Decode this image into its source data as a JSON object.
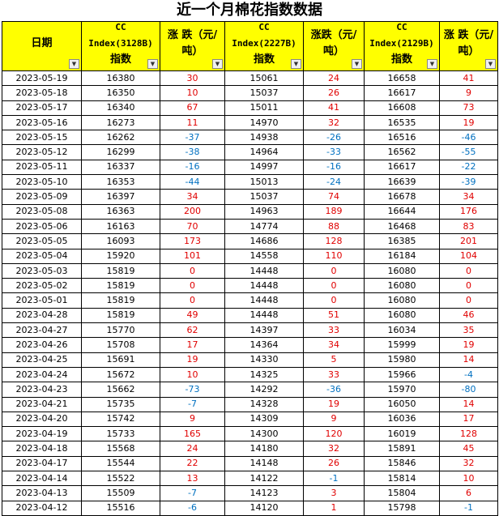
{
  "title": "近一个月棉花指数数据",
  "headers": [
    [
      "日期"
    ],
    [
      "CC",
      "Index(3128B)",
      "指数"
    ],
    [
      "涨 跌（元/",
      "吨）"
    ],
    [
      "CC",
      "Index(2227B)",
      "指数"
    ],
    [
      "涨跌（元/",
      "吨）"
    ],
    [
      "CC",
      "Index(2129B)",
      "指数"
    ],
    [
      "涨 跌（元/",
      "吨）"
    ]
  ],
  "filter_icon": "dropdown-triangle",
  "colors": {
    "header_bg": "#ffff00",
    "up": "#e00000",
    "down": "#0070c0"
  },
  "rows": [
    [
      "2023-05-19",
      "16380",
      "30",
      "15061",
      "24",
      "16658",
      "41"
    ],
    [
      "2023-05-18",
      "16350",
      "10",
      "15037",
      "26",
      "16617",
      "9"
    ],
    [
      "2023-05-17",
      "16340",
      "67",
      "15011",
      "41",
      "16608",
      "73"
    ],
    [
      "2023-05-16",
      "16273",
      "11",
      "14970",
      "32",
      "16535",
      "19"
    ],
    [
      "2023-05-15",
      "16262",
      "-37",
      "14938",
      "-26",
      "16516",
      "-46"
    ],
    [
      "2023-05-12",
      "16299",
      "-38",
      "14964",
      "-33",
      "16562",
      "-55"
    ],
    [
      "2023-05-11",
      "16337",
      "-16",
      "14997",
      "-16",
      "16617",
      "-22"
    ],
    [
      "2023-05-10",
      "16353",
      "-44",
      "15013",
      "-24",
      "16639",
      "-39"
    ],
    [
      "2023-05-09",
      "16397",
      "34",
      "15037",
      "74",
      "16678",
      "34"
    ],
    [
      "2023-05-08",
      "16363",
      "200",
      "14963",
      "189",
      "16644",
      "176"
    ],
    [
      "2023-05-06",
      "16163",
      "70",
      "14774",
      "88",
      "16468",
      "83"
    ],
    [
      "2023-05-05",
      "16093",
      "173",
      "14686",
      "128",
      "16385",
      "201"
    ],
    [
      "2023-05-04",
      "15920",
      "101",
      "14558",
      "110",
      "16184",
      "104"
    ],
    [
      "2023-05-03",
      "15819",
      "0",
      "14448",
      "0",
      "16080",
      "0"
    ],
    [
      "2023-05-02",
      "15819",
      "0",
      "14448",
      "0",
      "16080",
      "0"
    ],
    [
      "2023-05-01",
      "15819",
      "0",
      "14448",
      "0",
      "16080",
      "0"
    ],
    [
      "2023-04-28",
      "15819",
      "49",
      "14448",
      "51",
      "16080",
      "46"
    ],
    [
      "2023-04-27",
      "15770",
      "62",
      "14397",
      "33",
      "16034",
      "35"
    ],
    [
      "2023-04-26",
      "15708",
      "17",
      "14364",
      "34",
      "15999",
      "19"
    ],
    [
      "2023-04-25",
      "15691",
      "19",
      "14330",
      "5",
      "15980",
      "14"
    ],
    [
      "2023-04-24",
      "15672",
      "10",
      "14325",
      "33",
      "15966",
      "-4"
    ],
    [
      "2023-04-23",
      "15662",
      "-73",
      "14292",
      "-36",
      "15970",
      "-80"
    ],
    [
      "2023-04-21",
      "15735",
      "-7",
      "14328",
      "19",
      "16050",
      "14"
    ],
    [
      "2023-04-20",
      "15742",
      "9",
      "14309",
      "9",
      "16036",
      "17"
    ],
    [
      "2023-04-19",
      "15733",
      "165",
      "14300",
      "120",
      "16019",
      "128"
    ],
    [
      "2023-04-18",
      "15568",
      "24",
      "14180",
      "32",
      "15891",
      "45"
    ],
    [
      "2023-04-17",
      "15544",
      "22",
      "14148",
      "26",
      "15846",
      "32"
    ],
    [
      "2023-04-14",
      "15522",
      "13",
      "14122",
      "-1",
      "15814",
      "10"
    ],
    [
      "2023-04-13",
      "15509",
      "-7",
      "14123",
      "3",
      "15804",
      "6"
    ],
    [
      "2023-04-12",
      "15516",
      "-6",
      "14120",
      "1",
      "15798",
      "-1"
    ]
  ]
}
